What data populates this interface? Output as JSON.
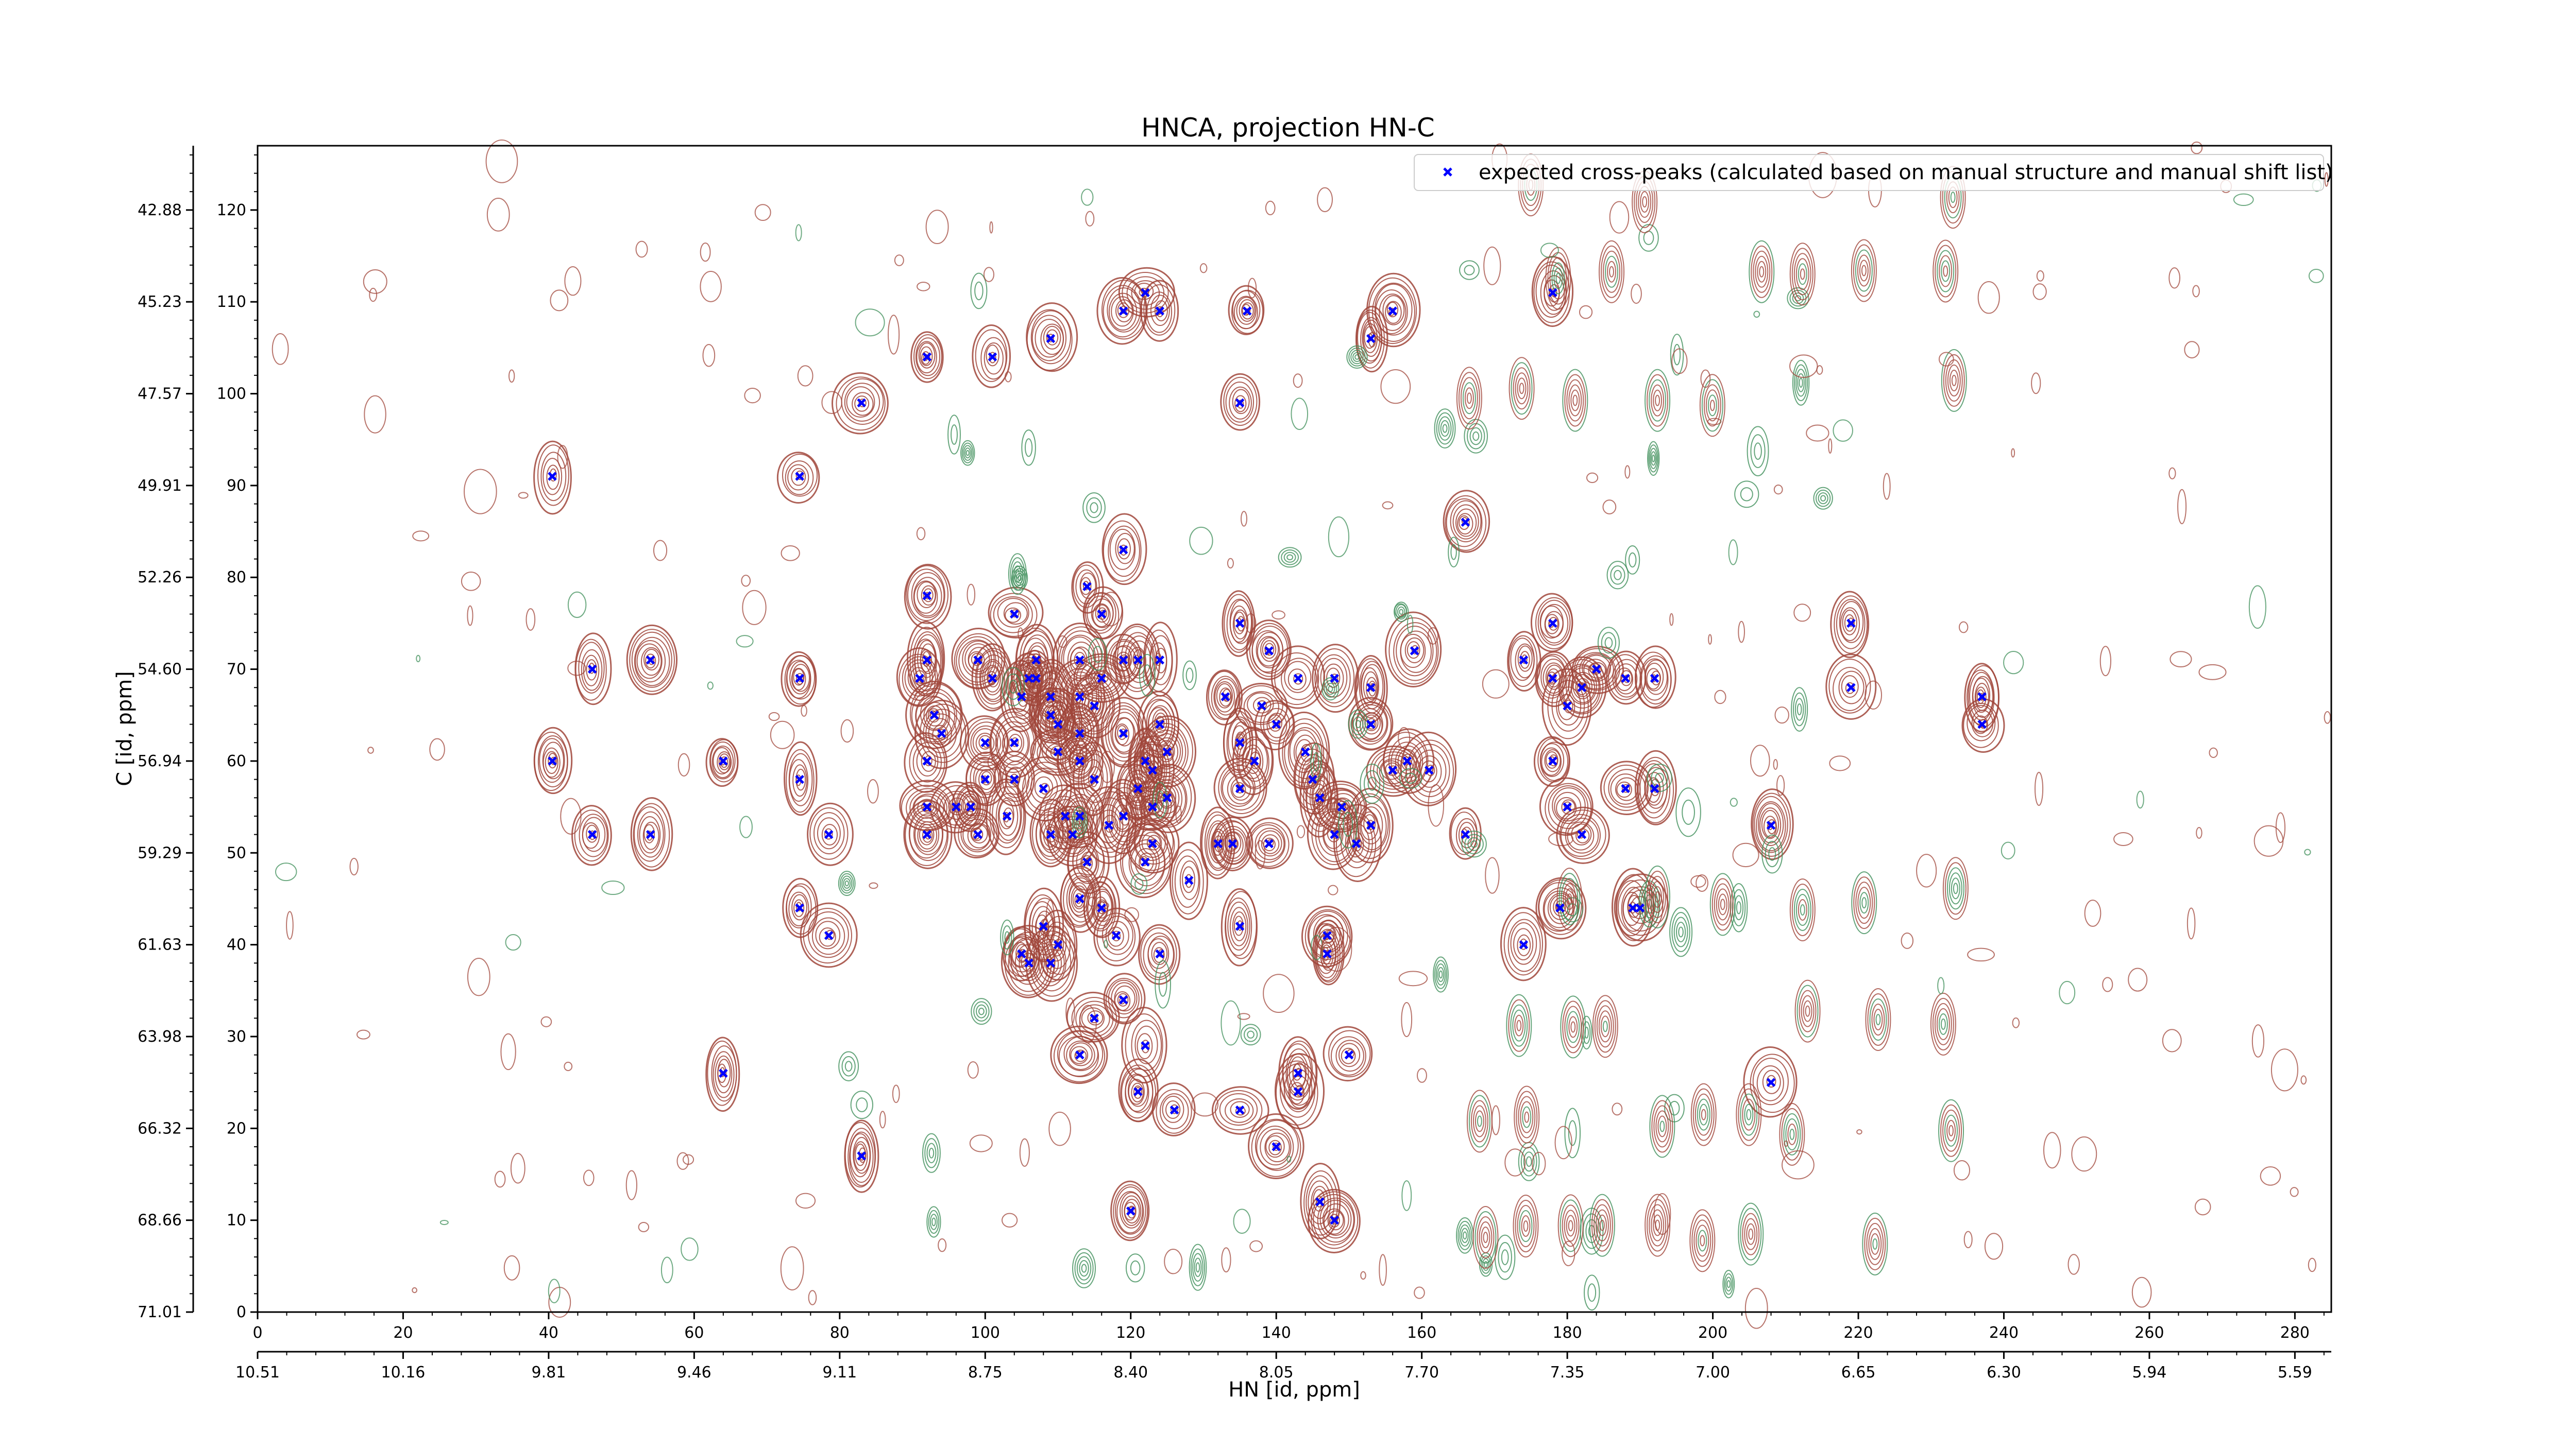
{
  "chart_data": {
    "type": "scatter",
    "title": "HNCA, projection HN-C",
    "xlabel": "HN [id, ppm]",
    "ylabel": "C [id, ppm]",
    "x_index_ticks": [
      "0",
      "20",
      "40",
      "60",
      "80",
      "100",
      "120",
      "140",
      "160",
      "180",
      "200",
      "220",
      "240",
      "260",
      "280"
    ],
    "x_index_range": [
      0,
      285
    ],
    "x_ppm_ticks": [
      "10.51",
      "10.16",
      "9.81",
      "9.46",
      "9.11",
      "8.75",
      "8.40",
      "8.05",
      "7.70",
      "7.35",
      "7.00",
      "6.65",
      "6.30",
      "5.94",
      "5.59"
    ],
    "y_index_ticks": [
      "0",
      "10",
      "20",
      "30",
      "40",
      "50",
      "60",
      "70",
      "80",
      "90",
      "100",
      "110",
      "120"
    ],
    "y_index_range": [
      0,
      127
    ],
    "y_ppm_ticks": [
      "71.01",
      "68.66",
      "66.32",
      "63.98",
      "61.63",
      "59.29",
      "56.94",
      "54.60",
      "52.26",
      "49.91",
      "47.57",
      "45.23",
      "42.88"
    ],
    "grid": false,
    "legend_position": "top-right",
    "colors": {
      "positive_contour": "#a0453a",
      "negative_contour": "#3f8f5a",
      "marker": "#0000ff"
    },
    "series": [
      {
        "name": "expected cross-peaks (calculated based on manual structure and manual shift list)",
        "marker": "x",
        "color": "#0000ff",
        "points": [
          [
            40.5,
            91
          ],
          [
            74.5,
            91
          ],
          [
            83,
            99
          ],
          [
            92,
            104
          ],
          [
            101,
            104
          ],
          [
            109,
            106
          ],
          [
            119,
            109
          ],
          [
            122,
            111
          ],
          [
            124,
            109
          ],
          [
            136,
            109
          ],
          [
            135,
            99
          ],
          [
            156,
            109
          ],
          [
            153,
            106
          ],
          [
            178,
            111
          ],
          [
            166,
            86
          ],
          [
            46,
            70
          ],
          [
            54,
            71
          ],
          [
            40.5,
            60
          ],
          [
            46,
            52
          ],
          [
            54,
            52
          ],
          [
            64,
            60
          ],
          [
            74.5,
            69
          ],
          [
            74.5,
            58
          ],
          [
            78.5,
            52
          ],
          [
            74.5,
            44
          ],
          [
            78.5,
            41
          ],
          [
            64,
            26
          ],
          [
            83,
            17
          ],
          [
            92,
            78
          ],
          [
            92,
            71
          ],
          [
            91,
            69
          ],
          [
            93,
            65
          ],
          [
            92,
            60
          ],
          [
            92,
            55
          ],
          [
            92,
            52
          ],
          [
            99,
            71
          ],
          [
            101,
            69
          ],
          [
            104,
            76
          ],
          [
            106,
            69
          ],
          [
            107,
            71
          ],
          [
            109,
            67
          ],
          [
            110,
            64
          ],
          [
            113,
            67
          ],
          [
            115,
            66
          ],
          [
            116,
            69
          ],
          [
            113,
            71
          ],
          [
            119,
            71
          ],
          [
            121,
            71
          ],
          [
            124,
            71
          ],
          [
            116,
            76
          ],
          [
            119,
            83
          ],
          [
            114,
            79
          ],
          [
            110,
            61
          ],
          [
            113,
            60
          ],
          [
            115,
            58
          ],
          [
            113,
            54
          ],
          [
            117,
            53
          ],
          [
            119,
            54
          ],
          [
            121,
            57
          ],
          [
            123,
            59
          ],
          [
            125,
            61
          ],
          [
            124,
            64
          ],
          [
            119,
            63
          ],
          [
            113,
            63
          ],
          [
            109,
            65
          ],
          [
            107,
            69
          ],
          [
            105,
            67
          ],
          [
            104,
            62
          ],
          [
            100,
            62
          ],
          [
            100,
            58
          ],
          [
            98,
            55
          ],
          [
            96,
            55
          ],
          [
            94,
            63
          ],
          [
            99,
            52
          ],
          [
            103,
            54
          ],
          [
            104,
            58
          ],
          [
            108,
            57
          ],
          [
            109,
            52
          ],
          [
            112,
            52
          ],
          [
            114,
            49
          ],
          [
            111,
            54
          ],
          [
            123,
            51
          ],
          [
            123,
            55
          ],
          [
            125,
            56
          ],
          [
            122,
            60
          ],
          [
            122,
            49
          ],
          [
            128,
            47
          ],
          [
            132,
            51
          ],
          [
            134,
            51
          ],
          [
            139,
            51
          ],
          [
            135,
            57
          ],
          [
            135,
            62
          ],
          [
            137,
            60
          ],
          [
            133,
            67
          ],
          [
            138,
            66
          ],
          [
            140,
            64
          ],
          [
            144,
            61
          ],
          [
            145,
            58
          ],
          [
            146,
            56
          ],
          [
            148,
            52
          ],
          [
            149,
            55
          ],
          [
            151,
            51
          ],
          [
            153,
            53
          ],
          [
            156,
            59
          ],
          [
            158,
            60
          ],
          [
            161,
            59
          ],
          [
            159,
            72
          ],
          [
            153,
            64
          ],
          [
            153,
            68
          ],
          [
            148,
            69
          ],
          [
            143,
            69
          ],
          [
            139,
            72
          ],
          [
            135,
            75
          ],
          [
            174,
            71
          ],
          [
            178,
            69
          ],
          [
            182,
            68
          ],
          [
            180,
            66
          ],
          [
            184,
            70
          ],
          [
            188,
            69
          ],
          [
            192,
            69
          ],
          [
            178,
            75
          ],
          [
            178,
            60
          ],
          [
            180,
            55
          ],
          [
            182,
            52
          ],
          [
            188,
            57
          ],
          [
            192,
            57
          ],
          [
            166,
            52
          ],
          [
            208,
            53
          ],
          [
            219,
            68
          ],
          [
            219,
            75
          ],
          [
            237,
            64
          ],
          [
            237,
            67
          ],
          [
            113,
            45
          ],
          [
            108,
            42
          ],
          [
            116,
            44
          ],
          [
            118,
            41
          ],
          [
            110,
            40
          ],
          [
            105,
            39
          ],
          [
            106,
            38
          ],
          [
            109,
            38
          ],
          [
            124,
            39
          ],
          [
            135,
            42
          ],
          [
            147,
            41
          ],
          [
            147,
            39
          ],
          [
            174,
            40
          ],
          [
            179,
            44
          ],
          [
            189,
            44
          ],
          [
            190,
            44
          ],
          [
            119,
            34
          ],
          [
            115,
            32
          ],
          [
            113,
            28
          ],
          [
            122,
            29
          ],
          [
            121,
            24
          ],
          [
            126,
            22
          ],
          [
            135,
            22
          ],
          [
            143,
            24
          ],
          [
            150,
            28
          ],
          [
            143,
            26
          ],
          [
            140,
            18
          ],
          [
            146,
            12
          ],
          [
            148,
            10
          ],
          [
            120,
            11
          ],
          [
            208,
            25
          ]
        ]
      }
    ]
  }
}
